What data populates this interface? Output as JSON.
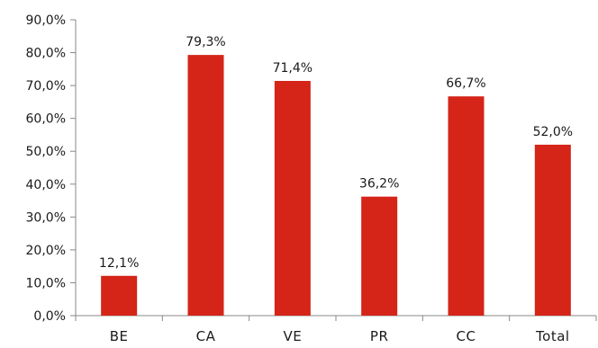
{
  "chart_data": {
    "type": "bar",
    "categories": [
      "BE",
      "CA",
      "VE",
      "PR",
      "CC",
      "Total"
    ],
    "values": [
      12.1,
      79.3,
      71.4,
      36.2,
      66.7,
      52.0
    ],
    "value_labels": [
      "12,1%",
      "79,3%",
      "71,4%",
      "36,2%",
      "66,7%",
      "52,0%"
    ],
    "y_ticks": [
      0,
      10,
      20,
      30,
      40,
      50,
      60,
      70,
      80,
      90
    ],
    "y_tick_labels": [
      "0,0%",
      "10,0%",
      "20,0%",
      "30,0%",
      "40,0%",
      "50,0%",
      "60,0%",
      "70,0%",
      "80,0%",
      "90,0%"
    ],
    "ylim": [
      0,
      90
    ],
    "title": "",
    "xlabel": "",
    "ylabel": "",
    "grid": false,
    "legend": "none",
    "colors": {
      "bar": "#d42518",
      "axis": "#888888",
      "text": "#1a1a1a"
    }
  }
}
